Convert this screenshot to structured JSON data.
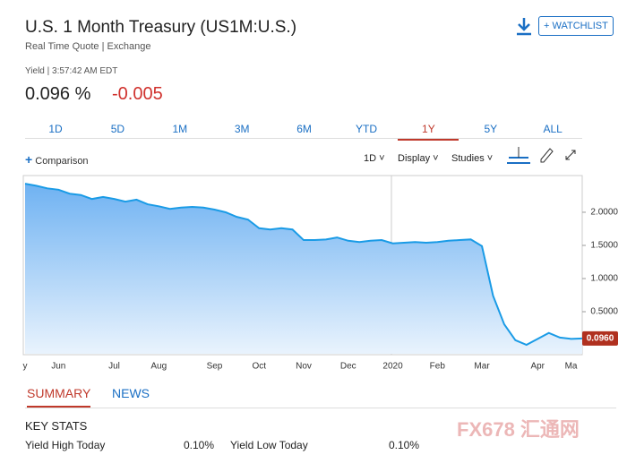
{
  "header": {
    "title": "U.S. 1 Month Treasury (US1M:U.S.)",
    "subtitle": "Real Time Quote | Exchange",
    "watchlist": "+ WATCHLIST",
    "quote_time": "Yield | 3:57:42 AM EDT",
    "price": "0.096 %",
    "change": "-0.005"
  },
  "ranges": [
    "1D",
    "5D",
    "1M",
    "3M",
    "6M",
    "YTD",
    "1Y",
    "5Y",
    "ALL"
  ],
  "toolbar": {
    "comparison": "Comparison",
    "interval": "1D",
    "display": "Display",
    "studies": "Studies"
  },
  "chart_data": {
    "type": "area",
    "color": "#1a9be6",
    "y_axis_side": "right",
    "categories": [
      "y",
      null,
      null,
      "Jun",
      null,
      null,
      null,
      null,
      "Jul",
      null,
      null,
      null,
      "Aug",
      null,
      null,
      null,
      null,
      "Sep",
      null,
      null,
      null,
      "Oct",
      null,
      null,
      null,
      "Nov",
      null,
      null,
      null,
      "Dec",
      null,
      null,
      null,
      "2020",
      null,
      null,
      null,
      "Feb",
      null,
      null,
      null,
      "Mar",
      null,
      null,
      null,
      null,
      "Apr",
      null,
      null,
      "Ma",
      null
    ],
    "series": [
      {
        "values": [
          2.43,
          2.4,
          2.36,
          2.34,
          2.28,
          2.26,
          2.2,
          2.23,
          2.2,
          2.16,
          2.19,
          2.12,
          2.09,
          2.05,
          2.07,
          2.08,
          2.07,
          2.04,
          2.0,
          1.93,
          1.89,
          1.76,
          1.74,
          1.76,
          1.74,
          1.58,
          1.58,
          1.59,
          1.62,
          1.57,
          1.55,
          1.57,
          1.58,
          1.53,
          1.54,
          1.55,
          1.54,
          1.55,
          1.57,
          1.58,
          1.59,
          1.49,
          0.74,
          0.31,
          0.07,
          0.0,
          0.09,
          0.18,
          0.11,
          0.09,
          0.096
        ],
        "value_labels": [
          null,
          null,
          null,
          null,
          null,
          null,
          null,
          null,
          null,
          null,
          null,
          null,
          null,
          null,
          null,
          null,
          null,
          null,
          null,
          null,
          null,
          null,
          null,
          null,
          null,
          null,
          null,
          null,
          null,
          null,
          null,
          null,
          null,
          null,
          null,
          null,
          null,
          null,
          null,
          null,
          null,
          null,
          null,
          null,
          null,
          null,
          null,
          null,
          null,
          null,
          "0.0960"
        ]
      }
    ],
    "ylim": [
      -0.135,
      2.54
    ],
    "yticks": [
      {
        "value": 0.5,
        "label": "0.5000"
      },
      {
        "value": 1,
        "label": "1.0000"
      },
      {
        "value": 1.5,
        "label": "1.5000"
      },
      {
        "value": 2,
        "label": "2.0000"
      }
    ]
  },
  "tabs": [
    "SUMMARY",
    "NEWS"
  ],
  "key_stats": {
    "title": "KEY STATS",
    "rows": [
      [
        "Yield High Today",
        "0.10%",
        "Yield Low Today",
        "0.10%"
      ]
    ]
  },
  "watermark": "FX678 汇通网"
}
